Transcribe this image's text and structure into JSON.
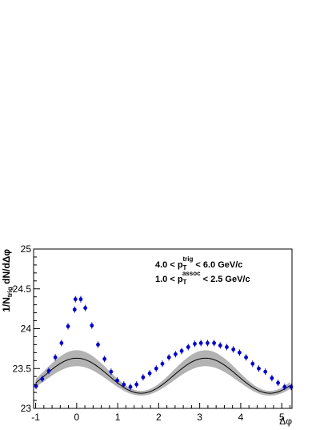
{
  "chart_data": {
    "type": "scatter",
    "title": "",
    "xlabel": "Δφ",
    "ylabel": "1/N_trig dN/dΔφ",
    "ylabel_parts": {
      "main": "1/N",
      "sub": "trig",
      "rest": " dN/dΔφ"
    },
    "xlim": [
      -1.05,
      5.25
    ],
    "ylim": [
      23.0,
      25.0
    ],
    "x_ticks": [
      -1,
      0,
      1,
      2,
      3,
      4,
      5
    ],
    "x_tick_labels": [
      "-1",
      "0",
      "1",
      "2",
      "3",
      "4",
      "5"
    ],
    "y_ticks": [
      23,
      23.5,
      24,
      24.5,
      25
    ],
    "y_tick_labels": [
      "23",
      "23.5",
      "24",
      "24.5",
      "25"
    ],
    "grid": false,
    "legend": "none",
    "annotations": [
      {
        "pre": "4.0 < p",
        "sub": "T",
        "sup": "trig",
        "post": " < 6.0 GeV/c"
      },
      {
        "pre": "1.0 < p",
        "sub": "T",
        "sup": "assoc",
        "post": " < 2.5 GeV/c"
      }
    ],
    "colors": {
      "points": "#0000cc",
      "band": "#b3b3b3",
      "curve": "#000000"
    },
    "points": [
      {
        "x": -0.99,
        "y": 23.28
      },
      {
        "x": -0.84,
        "y": 23.37
      },
      {
        "x": -0.68,
        "y": 23.47
      },
      {
        "x": -0.52,
        "y": 23.64
      },
      {
        "x": -0.37,
        "y": 23.82
      },
      {
        "x": -0.21,
        "y": 24.03
      },
      {
        "x": -0.05,
        "y": 24.24
      },
      {
        "x": -0.03,
        "y": 24.37
      },
      {
        "x": 0.1,
        "y": 24.37
      },
      {
        "x": 0.21,
        "y": 24.26
      },
      {
        "x": 0.37,
        "y": 24.04
      },
      {
        "x": 0.52,
        "y": 23.8
      },
      {
        "x": 0.68,
        "y": 23.62
      },
      {
        "x": 0.84,
        "y": 23.46
      },
      {
        "x": 0.99,
        "y": 23.35
      },
      {
        "x": 1.15,
        "y": 23.3
      },
      {
        "x": 1.31,
        "y": 23.27
      },
      {
        "x": 1.46,
        "y": 23.3
      },
      {
        "x": 1.62,
        "y": 23.39
      },
      {
        "x": 1.78,
        "y": 23.44
      },
      {
        "x": 1.94,
        "y": 23.5
      },
      {
        "x": 2.09,
        "y": 23.56
      },
      {
        "x": 2.25,
        "y": 23.64
      },
      {
        "x": 2.41,
        "y": 23.68
      },
      {
        "x": 2.56,
        "y": 23.72
      },
      {
        "x": 2.72,
        "y": 23.77
      },
      {
        "x": 2.88,
        "y": 23.81
      },
      {
        "x": 3.03,
        "y": 23.82
      },
      {
        "x": 3.19,
        "y": 23.82
      },
      {
        "x": 3.35,
        "y": 23.82
      },
      {
        "x": 3.5,
        "y": 23.79
      },
      {
        "x": 3.66,
        "y": 23.77
      },
      {
        "x": 3.82,
        "y": 23.74
      },
      {
        "x": 3.97,
        "y": 23.7
      },
      {
        "x": 4.13,
        "y": 23.64
      },
      {
        "x": 4.29,
        "y": 23.56
      },
      {
        "x": 4.44,
        "y": 23.5
      },
      {
        "x": 4.6,
        "y": 23.46
      },
      {
        "x": 4.76,
        "y": 23.38
      },
      {
        "x": 4.91,
        "y": 23.32
      },
      {
        "x": 5.07,
        "y": 23.27
      },
      {
        "x": 5.23,
        "y": 23.27
      }
    ],
    "v2_curve": {
      "function": "a + b*cos(2x)",
      "a": 23.41,
      "b": 0.22,
      "band_half_width_at_peak": 0.1,
      "band_half_width_at_trough": 0.03
    }
  }
}
